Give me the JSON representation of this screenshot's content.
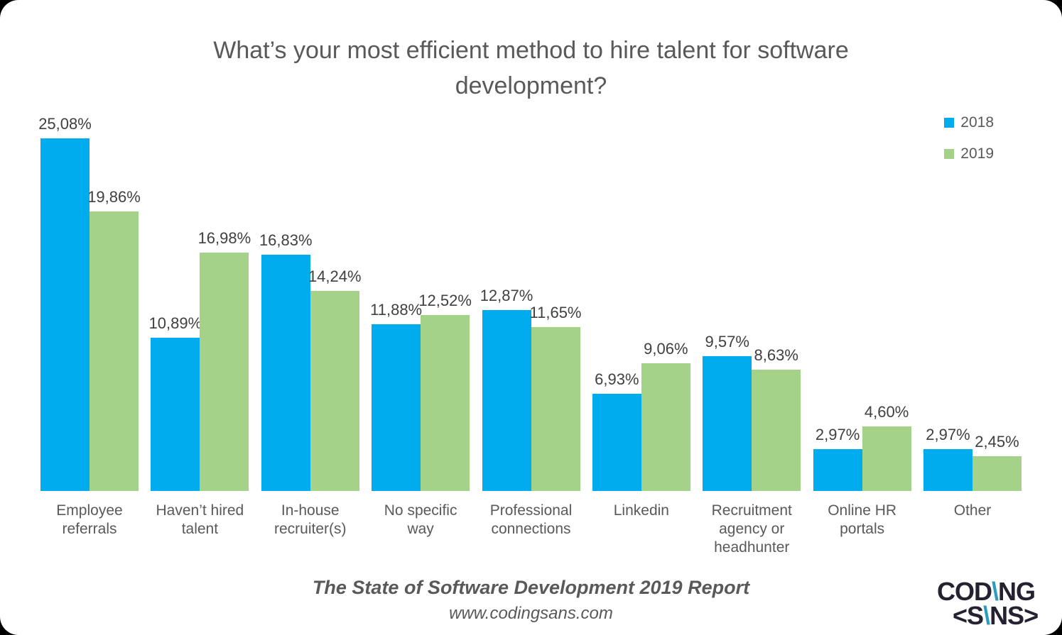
{
  "title": "What’s your most efficient method to hire talent for software\ndevelopment?",
  "legend": [
    {
      "label": "2018",
      "color": "#00ACEE"
    },
    {
      "label": "2019",
      "color": "#A4D288"
    }
  ],
  "chart_data": {
    "type": "bar",
    "title": "What’s your most efficient method to hire talent for software development?",
    "categories": [
      "Employee\nreferrals",
      "Haven’t hired\ntalent",
      "In-house\nrecruiter(s)",
      "No specific\nway",
      "Professional\nconnections",
      "Linkedin",
      "Recruitment\nagency or\nheadhunter",
      "Online HR\nportals",
      "Other"
    ],
    "series": [
      {
        "name": "2018",
        "color": "#00ACEE",
        "values": [
          25.08,
          10.89,
          16.83,
          11.88,
          12.87,
          6.93,
          9.57,
          2.97,
          2.97
        ],
        "labels": [
          "25,08%",
          "10,89%",
          "16,83%",
          "11,88%",
          "12,87%",
          "6,93%",
          "9,57%",
          "2,97%",
          "2,97%"
        ]
      },
      {
        "name": "2019",
        "color": "#A4D288",
        "values": [
          19.86,
          16.98,
          14.24,
          12.52,
          11.65,
          9.06,
          8.63,
          4.6,
          2.45
        ],
        "labels": [
          "19,86%",
          "16,98%",
          "14,24%",
          "12,52%",
          "11,65%",
          "9,06%",
          "8,63%",
          "4,60%",
          "2,45%"
        ]
      }
    ],
    "ylim": [
      0,
      25.08
    ],
    "value_suffix": "%",
    "decimal_separator": ",",
    "grid": false,
    "legend_position": "top-right",
    "axis_lines": "none"
  },
  "footer": {
    "report": "The State of Software Development 2019 Report",
    "website": "www.codingsans.com"
  },
  "logo": {
    "line1_pre": "COD",
    "line1_slash": "\\",
    "line1_post": "NG",
    "line2_pre": "<S",
    "line2_slash": "\\",
    "line2_post": "NS>",
    "dark_color": "#262130",
    "blue_color": "#2D9CC2"
  }
}
